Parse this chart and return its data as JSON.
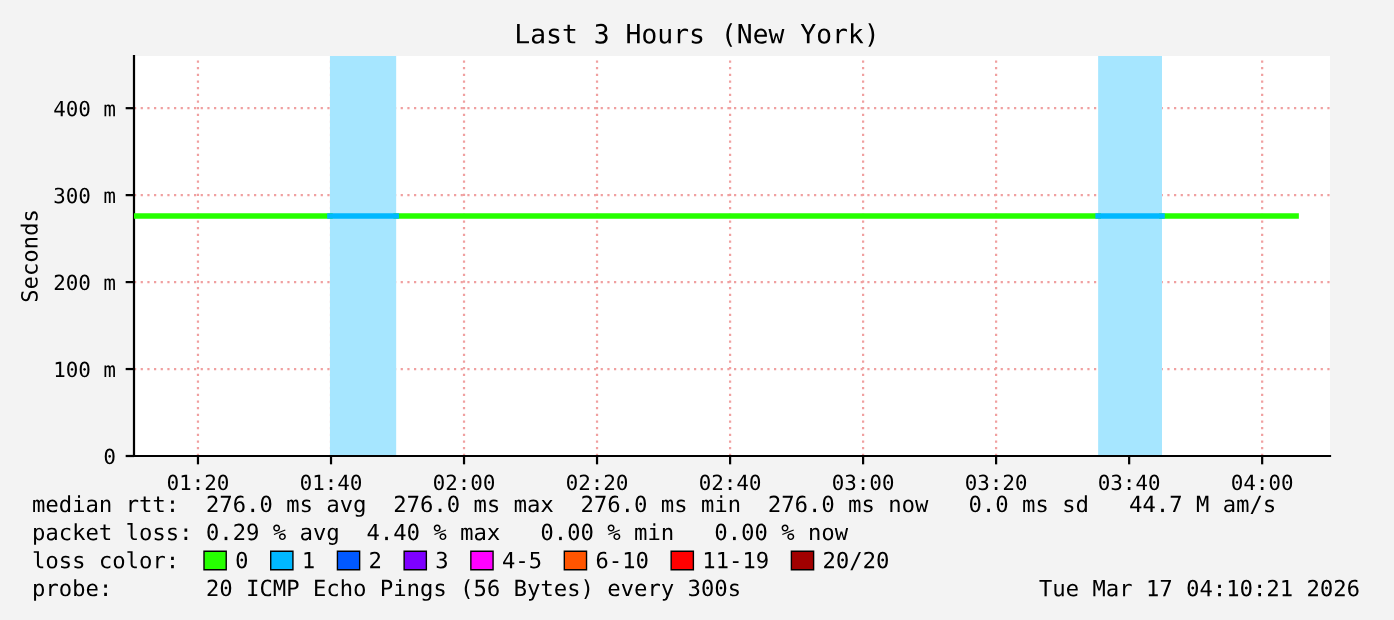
{
  "chart_data": {
    "type": "line",
    "title": "Last 3 Hours (New York)",
    "ylabel": "Seconds",
    "xlim": [
      1.173,
      4.17
    ],
    "xticks": [
      {
        "value": 1.3333,
        "label": "01:20"
      },
      {
        "value": 1.6667,
        "label": "01:40"
      },
      {
        "value": 2.0,
        "label": "02:00"
      },
      {
        "value": 2.3333,
        "label": "02:20"
      },
      {
        "value": 2.6667,
        "label": "02:40"
      },
      {
        "value": 3.0,
        "label": "03:00"
      },
      {
        "value": 3.3333,
        "label": "03:20"
      },
      {
        "value": 3.6667,
        "label": "03:40"
      },
      {
        "value": 4.0,
        "label": "04:00"
      }
    ],
    "ylim": [
      0,
      460
    ],
    "yticks": [
      0,
      {
        "value": 100,
        "label": "100 m"
      },
      {
        "value": 200,
        "label": "200 m"
      },
      {
        "value": 300,
        "label": "300 m"
      },
      {
        "value": 400,
        "label": "400 m"
      }
    ],
    "grid": true,
    "legend": "bottom",
    "legend_title": "loss color:",
    "series": [
      {
        "name": "0",
        "color": "#26ff00",
        "x": [
          1.173,
          1.664,
          1.747,
          1.83,
          3.589,
          3.669,
          3.749,
          4.085
        ],
        "values": [
          276,
          276,
          null,
          276,
          276,
          null,
          276,
          276
        ]
      },
      {
        "name": "1",
        "color": "#00b8ff",
        "x": [
          1.664,
          1.83,
          3.0,
          3.589,
          3.749
        ],
        "values": [
          276,
          276,
          null,
          276,
          276
        ]
      },
      {
        "name": "2",
        "color": "#0059ff"
      },
      {
        "name": "3",
        "color": "#7e00ff"
      },
      {
        "name": "4-5",
        "color": "#ff00ff"
      },
      {
        "name": "6-10",
        "color": "#ff5500"
      },
      {
        "name": "11-19",
        "color": "#ff0000"
      },
      {
        "name": "20/20",
        "color": "#a10000"
      }
    ],
    "bands": [
      {
        "axis": "x",
        "from": 1.664,
        "to": 1.83,
        "color": "#a6e6ff"
      },
      {
        "axis": "x",
        "from": 3.589,
        "to": 3.749,
        "color": "#a6e6ff"
      }
    ],
    "annotations": [
      "median rtt:  276.0 ms avg  276.0 ms max  276.0 ms min  276.0 ms now   0.0 ms sd   44.7 M am/s",
      "packet loss: 0.29 % avg  4.40 % max   0.00 % min   0.00 % now",
      "probe:       20 ICMP Echo Pings (56 Bytes) every 300s",
      "Tue Mar 17 04:10:21 2026"
    ]
  }
}
